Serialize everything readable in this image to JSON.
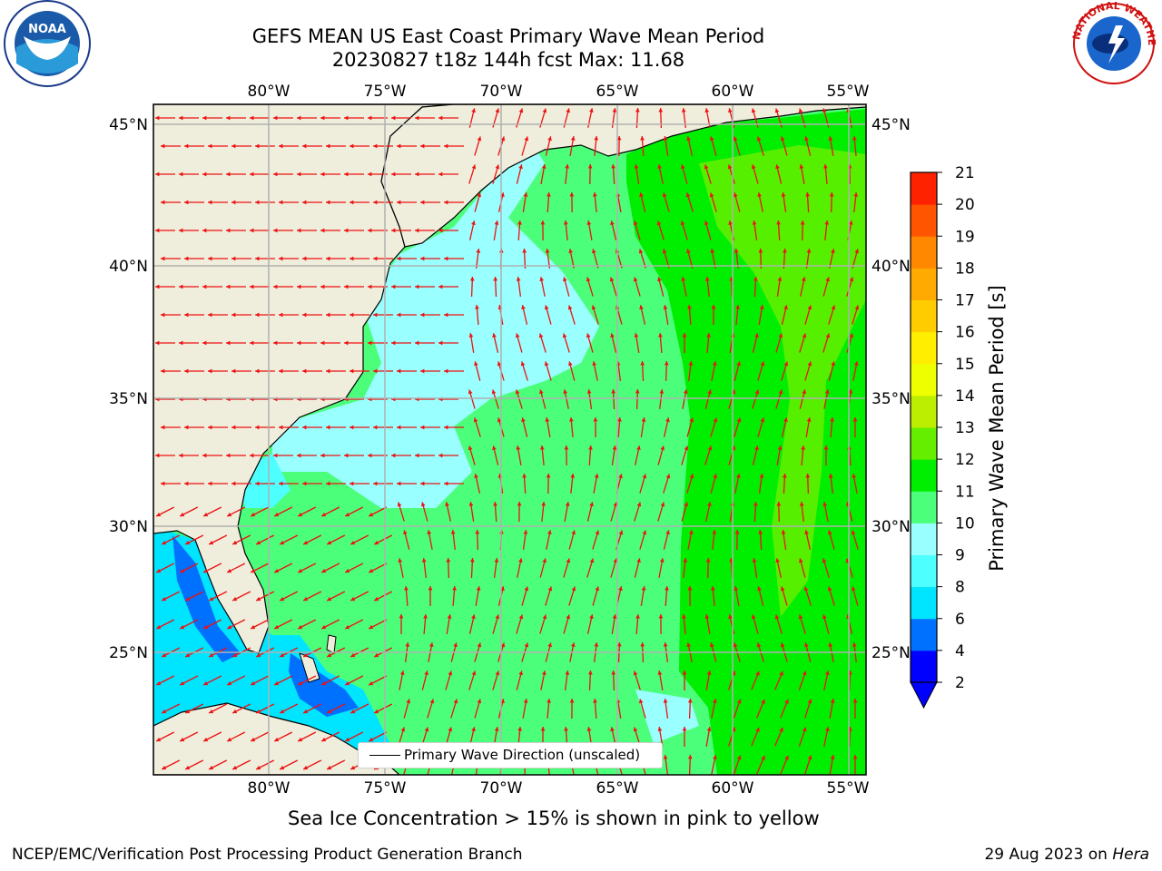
{
  "title_line1": "GEFS MEAN US East Coast Primary Wave Mean Period",
  "title_line2": "20230827 t18z 144h fcst   Max: 11.68",
  "logos": {
    "left": {
      "icon": "noaa-logo",
      "text": "NOAA"
    },
    "right": {
      "icon": "nws-logo",
      "text": "NATIONAL WEATHER SERVICE"
    }
  },
  "map": {
    "lon_labels": [
      "80°W",
      "75°W",
      "70°W",
      "65°W",
      "60°W",
      "55°W"
    ],
    "lat_labels": [
      "45°N",
      "40°N",
      "35°N",
      "30°N",
      "25°N"
    ],
    "lon_range": [
      -85,
      -55
    ],
    "lat_range": [
      20.5,
      46
    ]
  },
  "colorbar": {
    "label": "Primary Wave Mean Period [s]",
    "ticks": [
      "2",
      "4",
      "6",
      "8",
      "9",
      "10",
      "11",
      "12",
      "13",
      "14",
      "15",
      "16",
      "17",
      "18",
      "19",
      "20",
      "21"
    ],
    "colors": [
      "#0000ff",
      "#0070ff",
      "#00e5ff",
      "#4dffff",
      "#99ffff",
      "#4cff7a",
      "#00ee00",
      "#66ee00",
      "#bbee00",
      "#eeff00",
      "#ffee00",
      "#ffcc00",
      "#ffaa00",
      "#ff8800",
      "#ff5500",
      "#ff2200"
    ],
    "extend_color": "#0000ff"
  },
  "legend": {
    "label": "Primary Wave Direction (unscaled)"
  },
  "subtitle": "Sea Ice Concentration > 15% is shown in pink to yellow",
  "footer_left": "NCEP/EMC/Verification Post Processing Product Generation Branch",
  "footer_right_date": "29 Aug 2023 on",
  "footer_right_machine": "Hera"
}
